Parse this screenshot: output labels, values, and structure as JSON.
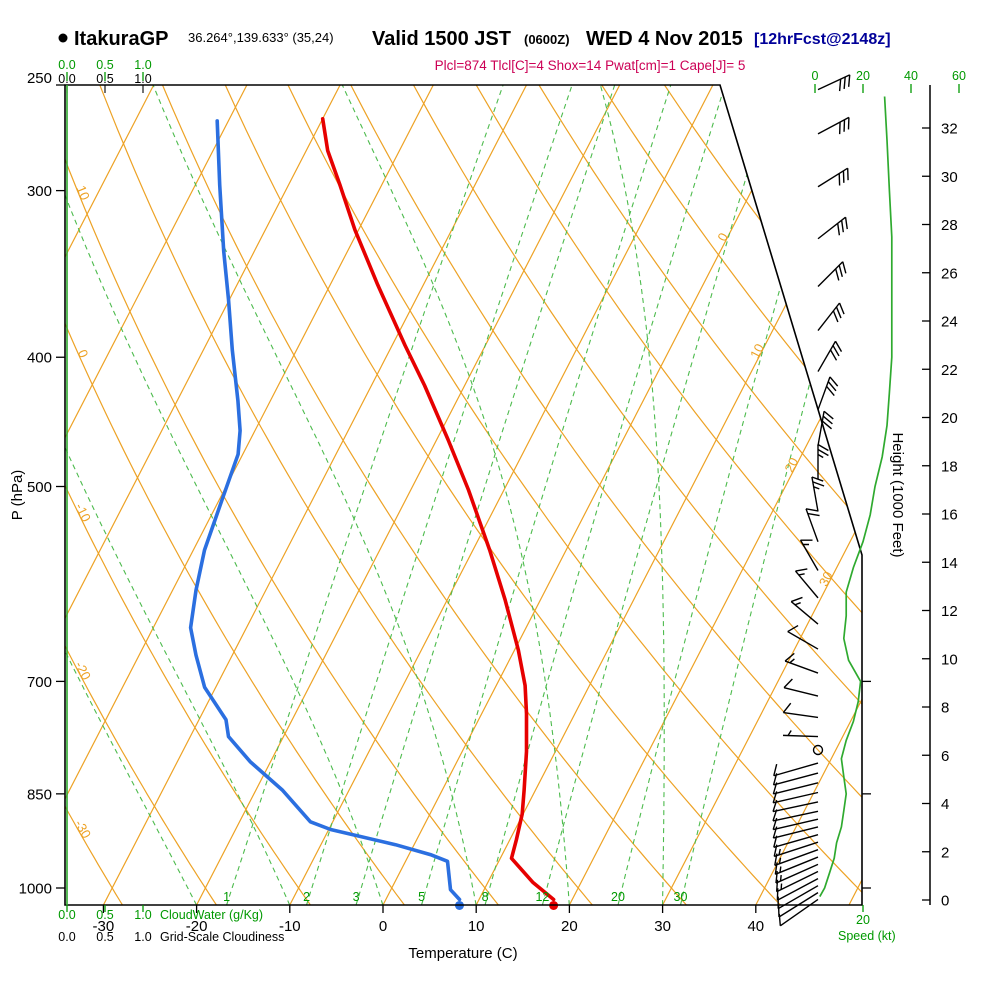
{
  "header": {
    "bullet": "●",
    "station": "ItakuraGP",
    "coords": "36.264°,139.633° (35,24)",
    "valid_main": "Valid 1500 JST",
    "valid_z": "(0600Z)",
    "valid_date": "WED 4 Nov 2015",
    "fcst": "[12hrFcst@2148z]",
    "params": "Plcl=874 Tlcl[C]=4 Shox=14 Pwat[cm]=1 Cape[J]= 5"
  },
  "colors": {
    "orange": "#eda225",
    "green_dash": "#4dbb4d",
    "green": "#009900",
    "green_line": "#2faa2f",
    "red": "#e60000",
    "blue": "#2b6fe0",
    "navy": "#000099",
    "magenta": "#cc0055",
    "black": "#000000"
  },
  "chart_data": {
    "type": "skew-t-log-p-sounding",
    "title": "Valid 1500 JST (0600Z) WED 4 Nov 2015 [12hrFcst@2148z]",
    "station": "ItakuraGP 36.264°,139.633° (35,24)",
    "indices": {
      "Plcl": 874,
      "Tlcl_C": 4,
      "Shox": 14,
      "Pwat_cm": 1,
      "Cape_J": 5
    },
    "axes": {
      "pressure": {
        "label": "P (hPa)",
        "ticks": [
          250,
          300,
          400,
          500,
          700,
          850,
          1000
        ]
      },
      "temperature": {
        "label": "Temperature (C)",
        "ticks": [
          -30,
          -20,
          -10,
          0,
          10,
          20,
          30,
          40
        ]
      },
      "height": {
        "label": "Height (1000 Feet)",
        "ticks": [
          0,
          2,
          4,
          6,
          8,
          10,
          12,
          14,
          16,
          18,
          20,
          22,
          24,
          26,
          28,
          30,
          32
        ]
      },
      "speed": {
        "label": "Speed (kt)",
        "top_ticks": [
          0,
          20,
          40,
          60
        ],
        "bottom_ticks": [
          20
        ]
      },
      "cloudwater": {
        "label": "CloudWater (g/Kg)",
        "ticks": [
          "0.0",
          "0.5",
          "1.0"
        ]
      },
      "cloudiness": {
        "label": "Grid-Scale Cloudiness",
        "ticks": [
          "0.0",
          "0.5",
          "1.0"
        ]
      }
    },
    "isotherms": {
      "min": -90,
      "max": 50,
      "step": 10,
      "right_labels": [
        0,
        10,
        20,
        30
      ]
    },
    "dry_adiabats": {
      "min": -30,
      "max": 120,
      "step": 10,
      "left_labels": [
        10,
        0,
        -10,
        -20,
        -30
      ]
    },
    "mixing_ratio_lines": [
      1,
      2,
      3,
      5,
      8,
      12,
      20,
      30
    ],
    "moist_adiabats": [
      -20,
      -10,
      0,
      10,
      20,
      30
    ],
    "temperature_trace": [
      [
        1020,
        18
      ],
      [
        990,
        14.8
      ],
      [
        950,
        11.2
      ],
      [
        920,
        10.7
      ],
      [
        880,
        9.9
      ],
      [
        845,
        8.8
      ],
      [
        790,
        6.9
      ],
      [
        740,
        4.8
      ],
      [
        705,
        3.1
      ],
      [
        663,
        0.4
      ],
      [
        608,
        -3.8
      ],
      [
        558,
        -8.2
      ],
      [
        503,
        -13.8
      ],
      [
        461,
        -18.8
      ],
      [
        420,
        -24.3
      ],
      [
        392,
        -28.6
      ],
      [
        353,
        -34.9
      ],
      [
        321,
        -40.4
      ],
      [
        297,
        -44.5
      ],
      [
        280,
        -47.7
      ],
      [
        265,
        -50
      ]
    ],
    "dewpoint_trace": [
      [
        1020,
        7.9
      ],
      [
        1003,
        6.4
      ],
      [
        955,
        4.5
      ],
      [
        944,
        2.3
      ],
      [
        928,
        -2
      ],
      [
        904,
        -9.8
      ],
      [
        892,
        -12.4
      ],
      [
        845,
        -17.1
      ],
      [
        804,
        -22.2
      ],
      [
        770,
        -25.9
      ],
      [
        748,
        -27.1
      ],
      [
        707,
        -31.2
      ],
      [
        669,
        -33.9
      ],
      [
        638,
        -36
      ],
      [
        598,
        -37.5
      ],
      [
        558,
        -38.8
      ],
      [
        512,
        -39.7
      ],
      [
        473,
        -40.5
      ],
      [
        454,
        -41.6
      ],
      [
        431,
        -43.5
      ],
      [
        395,
        -46.9
      ],
      [
        362,
        -50.1
      ],
      [
        333,
        -53.3
      ],
      [
        297,
        -57.4
      ],
      [
        266,
        -61.2
      ]
    ],
    "wind_barbs": [
      {
        "p": 1020,
        "dir": 235,
        "spd": 10
      },
      {
        "p": 1008,
        "dir": 238,
        "spd": 11
      },
      {
        "p": 996,
        "dir": 240,
        "spd": 12
      },
      {
        "p": 984,
        "dir": 242,
        "spd": 12
      },
      {
        "p": 972,
        "dir": 244,
        "spd": 13
      },
      {
        "p": 960,
        "dir": 246,
        "spd": 13
      },
      {
        "p": 948,
        "dir": 248,
        "spd": 14
      },
      {
        "p": 936,
        "dir": 250,
        "spd": 13
      },
      {
        "p": 924,
        "dir": 252,
        "spd": 13
      },
      {
        "p": 912,
        "dir": 254,
        "spd": 12
      },
      {
        "p": 900,
        "dir": 256,
        "spd": 12
      },
      {
        "p": 888,
        "dir": 257,
        "spd": 11
      },
      {
        "p": 876,
        "dir": 258,
        "spd": 10
      },
      {
        "p": 862,
        "dir": 258,
        "spd": 10
      },
      {
        "p": 848,
        "dir": 257,
        "spd": 10
      },
      {
        "p": 834,
        "dir": 256,
        "spd": 9
      },
      {
        "p": 820,
        "dir": 255,
        "spd": 8
      },
      {
        "p": 806,
        "dir": 254,
        "spd": 8
      },
      {
        "p": 788,
        "dir": 0,
        "spd": 0
      },
      {
        "p": 770,
        "dir": 272,
        "spd": 6
      },
      {
        "p": 745,
        "dir": 278,
        "spd": 8
      },
      {
        "p": 718,
        "dir": 284,
        "spd": 12
      },
      {
        "p": 690,
        "dir": 290,
        "spd": 16
      },
      {
        "p": 662,
        "dir": 300,
        "spd": 12
      },
      {
        "p": 634,
        "dir": 310,
        "spd": 13
      },
      {
        "p": 606,
        "dir": 320,
        "spd": 13
      },
      {
        "p": 578,
        "dir": 330,
        "spd": 17
      },
      {
        "p": 550,
        "dir": 340,
        "spd": 20
      },
      {
        "p": 522,
        "dir": 350,
        "spd": 23
      },
      {
        "p": 494,
        "dir": 0,
        "spd": 25
      },
      {
        "p": 466,
        "dir": 10,
        "spd": 28
      },
      {
        "p": 438,
        "dir": 20,
        "spd": 30
      },
      {
        "p": 410,
        "dir": 30,
        "spd": 31
      },
      {
        "p": 382,
        "dir": 38,
        "spd": 32
      },
      {
        "p": 354,
        "dir": 45,
        "spd": 32
      },
      {
        "p": 326,
        "dir": 52,
        "spd": 32
      },
      {
        "p": 298,
        "dir": 58,
        "spd": 31
      },
      {
        "p": 272,
        "dir": 62,
        "spd": 30
      },
      {
        "p": 252,
        "dir": 65,
        "spd": 29
      }
    ],
    "speed_profile": [
      [
        1015,
        2
      ],
      [
        1000,
        4
      ],
      [
        975,
        6
      ],
      [
        950,
        8
      ],
      [
        925,
        9
      ],
      [
        900,
        11
      ],
      [
        875,
        12
      ],
      [
        850,
        13
      ],
      [
        825,
        12
      ],
      [
        800,
        11
      ],
      [
        775,
        13
      ],
      [
        750,
        16
      ],
      [
        725,
        18
      ],
      [
        700,
        19
      ],
      [
        675,
        14
      ],
      [
        650,
        12
      ],
      [
        625,
        13
      ],
      [
        600,
        13
      ],
      [
        575,
        16
      ],
      [
        550,
        20
      ],
      [
        525,
        23
      ],
      [
        500,
        25
      ],
      [
        475,
        28
      ],
      [
        450,
        30
      ],
      [
        425,
        31
      ],
      [
        400,
        32
      ],
      [
        375,
        32
      ],
      [
        350,
        32
      ],
      [
        325,
        32
      ],
      [
        300,
        31
      ],
      [
        275,
        30
      ],
      [
        255,
        29
      ]
    ],
    "cloudwater_profile": [
      [
        1030,
        0
      ],
      [
        250,
        0
      ]
    ]
  }
}
